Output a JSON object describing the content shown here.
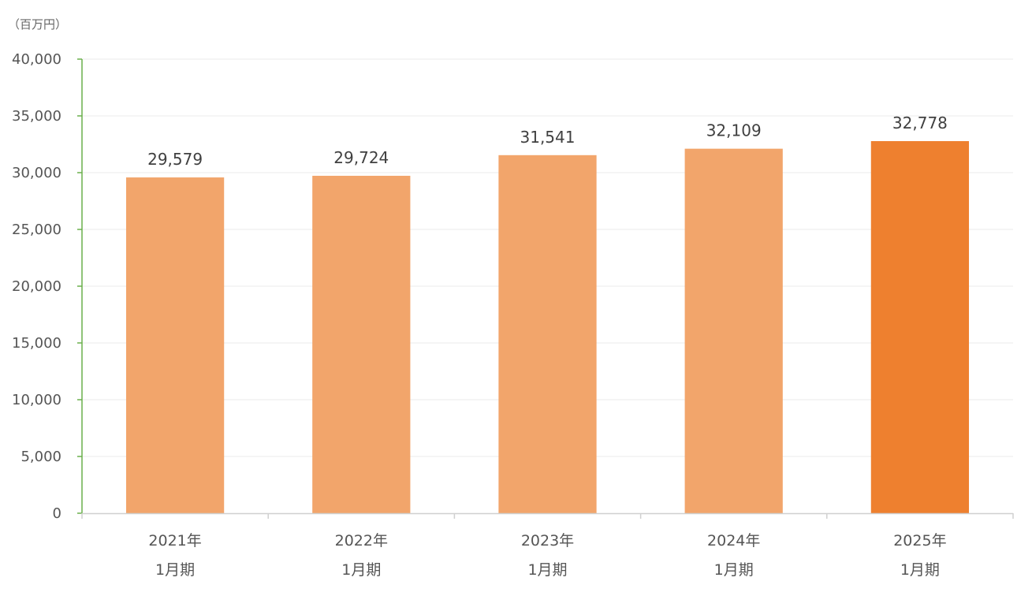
{
  "chart_data": {
    "type": "bar",
    "unit_label": "（百万円）",
    "categories": [
      [
        "2021年",
        "1月期"
      ],
      [
        "2022年",
        "1月期"
      ],
      [
        "2023年",
        "1月期"
      ],
      [
        "2024年",
        "1月期"
      ],
      [
        "2025年",
        "1月期"
      ]
    ],
    "values": [
      29579,
      29724,
      31541,
      32109,
      32778
    ],
    "data_labels": [
      "29,579",
      "29,724",
      "31,541",
      "32,109",
      "32,778"
    ],
    "ylim": [
      0,
      40000
    ],
    "yticks": [
      0,
      5000,
      10000,
      15000,
      20000,
      25000,
      30000,
      35000,
      40000
    ],
    "ytick_labels": [
      "0",
      "5,000",
      "10,000",
      "15,000",
      "20,000",
      "25,000",
      "30,000",
      "35,000",
      "40,000"
    ],
    "grid": true,
    "colors": {
      "bar": "#F2A56B",
      "bar_highlight": "#EE802F",
      "y_axis": "#6AB04C",
      "x_axis": "#D0D0D0",
      "grid": "#EBEBEB"
    },
    "highlight_index": 4
  }
}
